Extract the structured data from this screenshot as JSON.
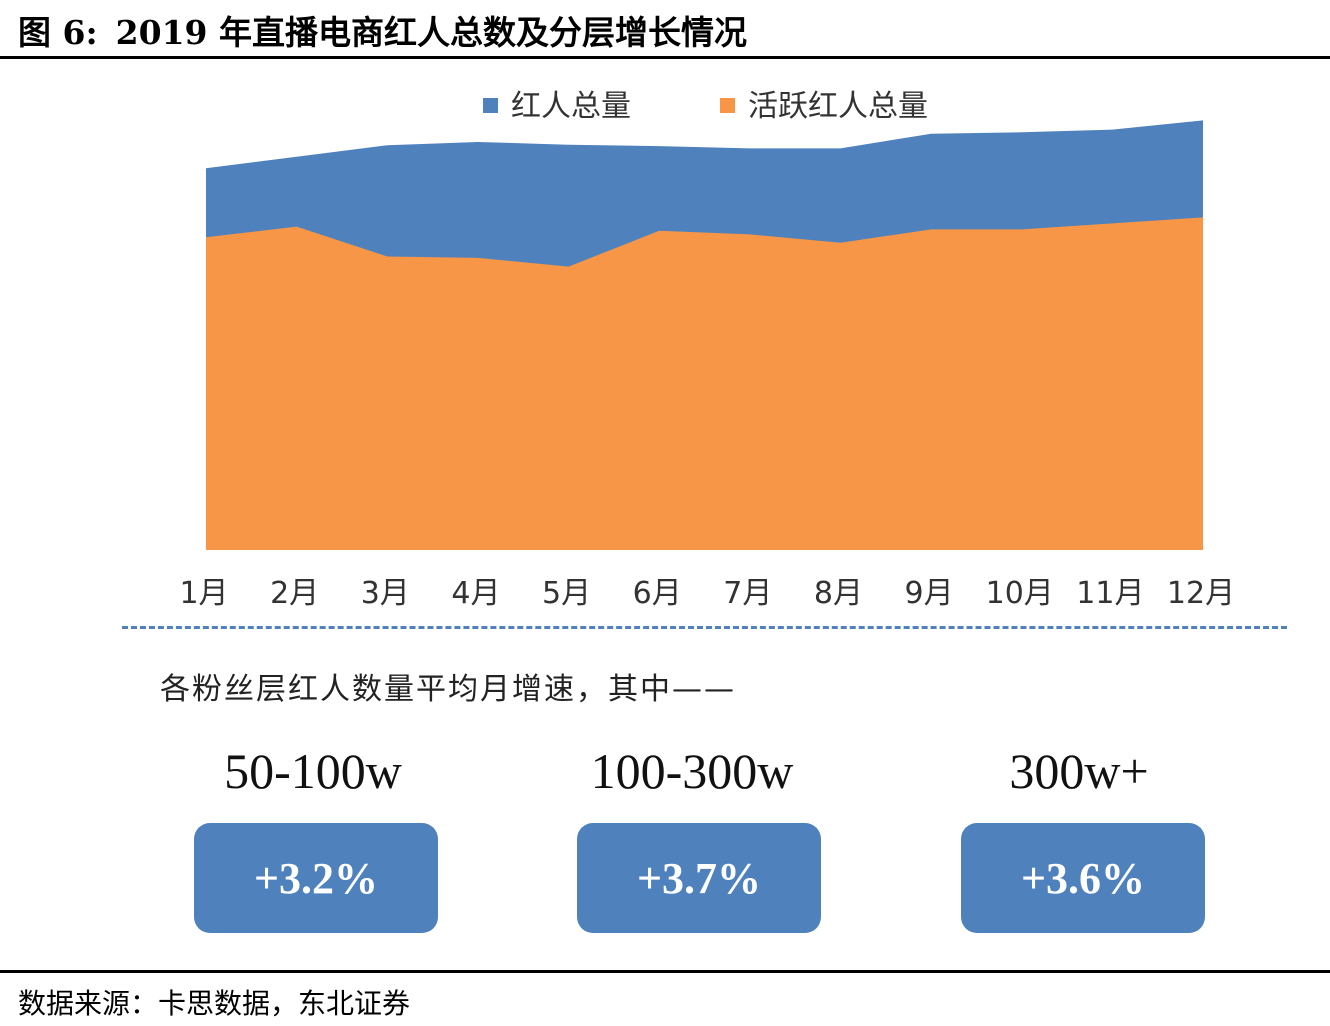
{
  "header": {
    "figure_label": "图 6:",
    "title": "2019 年直播电商红人总数及分层增长情况"
  },
  "chart_data": {
    "type": "area",
    "title": "",
    "legend_position": "top",
    "categories": [
      "1月",
      "2月",
      "3月",
      "4月",
      "5月",
      "6月",
      "7月",
      "8月",
      "9月",
      "10月",
      "11月",
      "12月"
    ],
    "series": [
      {
        "name": "红人总量",
        "color": "#4f81bd",
        "values": [
          83.0,
          85.5,
          88.0,
          88.7,
          88.1,
          87.8,
          87.3,
          87.3,
          90.5,
          90.8,
          91.4,
          93.4
        ]
      },
      {
        "name": "活跃红人总量",
        "color": "#f79646",
        "values": [
          68.0,
          70.3,
          63.8,
          63.5,
          61.6,
          69.4,
          68.6,
          66.8,
          69.7,
          69.7,
          71.0,
          72.3
        ]
      }
    ],
    "ylim": [
      0,
      100
    ],
    "grid": false,
    "xlabel": "",
    "ylabel": ""
  },
  "tiers": {
    "subtitle": "各粉丝层红人数量平均月增速，其中——",
    "items": [
      {
        "label": "50-100w",
        "growth": "+3.2%"
      },
      {
        "label": "100-300w",
        "growth": "+3.7%"
      },
      {
        "label": "300w+",
        "growth": "+3.6%"
      }
    ]
  },
  "footer": {
    "source": "数据来源：卡思数据，东北证券"
  }
}
